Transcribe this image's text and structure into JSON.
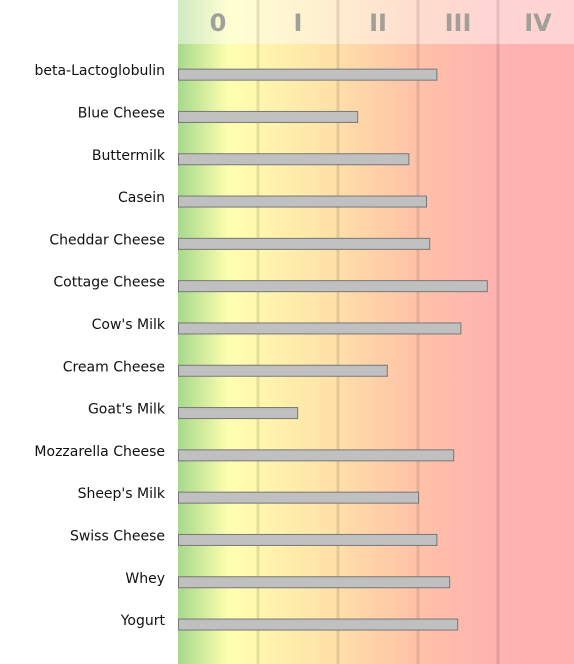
{
  "chart_data": {
    "type": "hbar",
    "categories": [
      "beta-Lactoglobulin",
      "Blue Cheese",
      "Buttermilk",
      "Casein",
      "Cheddar Cheese",
      "Cottage Cheese",
      "Cow's Milk",
      "Cream Cheese",
      "Goat's Milk",
      "Mozzarella Cheese",
      "Sheep's Milk",
      "Swiss Cheese",
      "Whey",
      "Yogurt"
    ],
    "values": [
      3.23,
      2.24,
      2.88,
      3.1,
      3.14,
      3.86,
      3.53,
      2.61,
      1.49,
      3.44,
      3.0,
      3.23,
      3.39,
      3.49
    ],
    "color": "#c0c0c0",
    "xlim": [
      0,
      4.95
    ],
    "xticks": [
      {
        "value": 0.5,
        "label": "0"
      },
      {
        "value": 1.5,
        "label": "I"
      },
      {
        "value": 2.5,
        "label": "II"
      },
      {
        "value": 3.5,
        "label": "III"
      },
      {
        "value": 4.5,
        "label": "IV"
      }
    ],
    "grid": true
  }
}
